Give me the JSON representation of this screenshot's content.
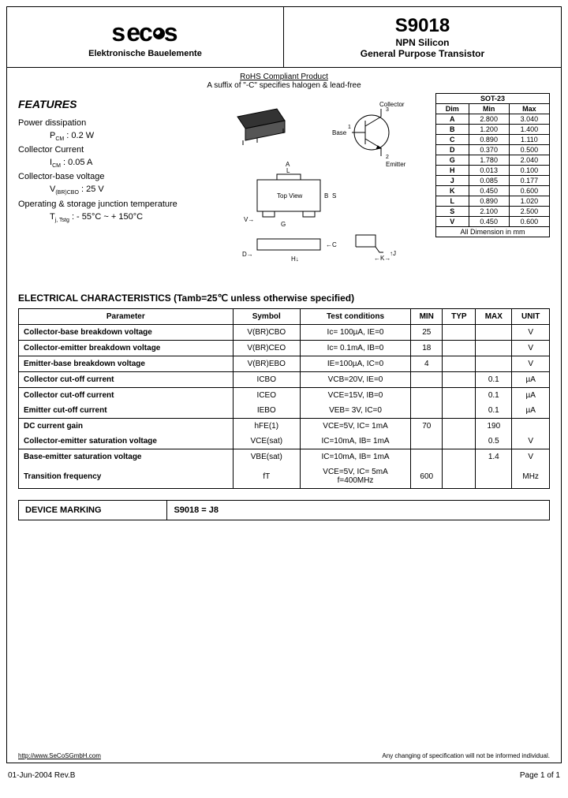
{
  "header": {
    "brand": "secos",
    "sub_brand": "Elektronische Bauelemente",
    "part": "S9018",
    "subtitle1": "NPN Silicon",
    "subtitle2": "General Purpose Transistor"
  },
  "rohs_line": "RoHS Compliant Product",
  "suffix_line": "A suffix of \"-C\" specifies halogen & lead-free",
  "features": {
    "title": "FEATURES",
    "items": [
      {
        "label": "Power dissipation",
        "sym": "P",
        "sub": "CM",
        "val": " :  0.2  W"
      },
      {
        "label": "Collector Current",
        "sym": "I",
        "sub": "CM",
        "val": " :  0.05 A"
      },
      {
        "label": "Collector-base voltage",
        "sym": "V",
        "sub": "(BR)CBO",
        "val": " :  25 V"
      },
      {
        "label": "Operating & storage junction temperature",
        "sym": "T",
        "sub": "j, Tstg",
        "val": " : - 55°C ~ + 150°C"
      }
    ]
  },
  "package": {
    "label": "SOT-23",
    "headers": [
      "Dim",
      "Min",
      "Max"
    ],
    "rows": [
      [
        "A",
        "2.800",
        "3.040"
      ],
      [
        "B",
        "1.200",
        "1.400"
      ],
      [
        "C",
        "0.890",
        "1.110"
      ],
      [
        "D",
        "0.370",
        "0.500"
      ],
      [
        "G",
        "1.780",
        "2.040"
      ],
      [
        "H",
        "0.013",
        "0.100"
      ],
      [
        "J",
        "0.085",
        "0.177"
      ],
      [
        "K",
        "0.450",
        "0.600"
      ],
      [
        "L",
        "0.890",
        "1.020"
      ],
      [
        "S",
        "2.100",
        "2.500"
      ],
      [
        "V",
        "0.450",
        "0.600"
      ]
    ],
    "footer": "All Dimension in mm"
  },
  "pins": {
    "c": "Collector",
    "b": "Base",
    "e": "Emitter"
  },
  "ec": {
    "title": "ELECTRICAL   CHARACTERISTICS (Tamb=25℃    unless  otherwise   specified)",
    "headers": [
      "Parameter",
      "Symbol",
      "Test   conditions",
      "MIN",
      "TYP",
      "MAX",
      "UNIT"
    ],
    "rows": [
      {
        "param": "Collector-base breakdown voltage",
        "sym": "V(BR)CBO",
        "cond": "Ic= 100µA, IE=0",
        "min": "25",
        "typ": "",
        "max": "",
        "unit": "V",
        "group": 0
      },
      {
        "param": "Collector-emitter breakdown voltage",
        "sym": "V(BR)CEO",
        "cond": "Ic= 0.1mA, IB=0",
        "min": "18",
        "typ": "",
        "max": "",
        "unit": "V",
        "group": 1
      },
      {
        "param": "Emitter-base breakdown voltage",
        "sym": "V(BR)EBO",
        "cond": "IE=100µA, IC=0",
        "min": "4",
        "typ": "",
        "max": "",
        "unit": "V",
        "group": 2
      },
      {
        "param": "Collector cut-off current",
        "sym": "ICBO",
        "cond": "VCB=20V, IE=0",
        "min": "",
        "typ": "",
        "max": "0.1",
        "unit": "µA",
        "group": 3
      },
      {
        "param": "Collector cut-off current",
        "sym": "ICEO",
        "cond": "VCE=15V, IB=0",
        "min": "",
        "typ": "",
        "max": "0.1",
        "unit": "µA",
        "group": 4
      },
      {
        "param": "Emitter cut-off current",
        "sym": "IEBO",
        "cond": "VEB= 3V, IC=0",
        "min": "",
        "typ": "",
        "max": "0.1",
        "unit": "µA",
        "group": 4
      },
      {
        "param": "DC current gain",
        "sym": "hFE(1)",
        "cond": "VCE=5V, IC= 1mA",
        "min": "70",
        "typ": "",
        "max": "190",
        "unit": "",
        "group": 5
      },
      {
        "param": "Collector-emitter saturation voltage",
        "sym": "VCE(sat)",
        "cond": "IC=10mA, IB= 1mA",
        "min": "",
        "typ": "",
        "max": "0.5",
        "unit": "V",
        "group": 5
      },
      {
        "param": "Base-emitter saturation voltage",
        "sym": "VBE(sat)",
        "cond": "IC=10mA, IB= 1mA",
        "min": "",
        "typ": "",
        "max": "1.4",
        "unit": "V",
        "group": 6
      },
      {
        "param": "Transition frequency",
        "sym": "fT",
        "cond": "VCE=5V, IC= 5mA\nf=400MHz",
        "min": "600",
        "typ": "",
        "max": "",
        "unit": "MHz",
        "group": 6
      }
    ]
  },
  "marking": {
    "label": "DEVICE MARKING",
    "value": "S9018 = J8"
  },
  "page_foot": {
    "url": "http://www.SeCoSGmbH.com",
    "disclaimer": "Any changing of specification will not be informed individual."
  },
  "footer": {
    "left": "01-Jun-2004  Rev.B",
    "right": "Page 1 of 1"
  },
  "colors": {
    "line": "#000000",
    "bg": "#ffffff"
  }
}
